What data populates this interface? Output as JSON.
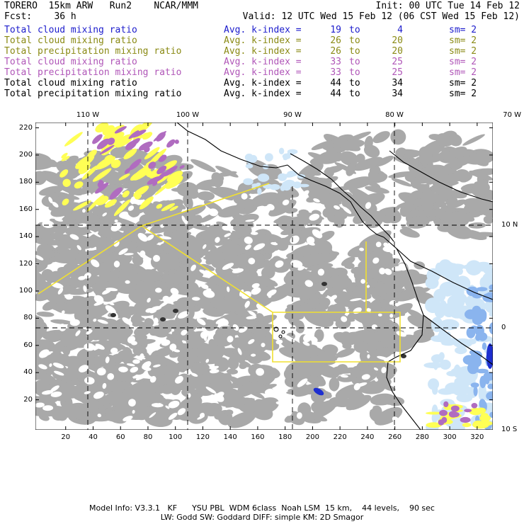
{
  "header": {
    "model": "TORERO",
    "resolution": "15km ARW",
    "run": "Run2",
    "org": "NCAR/MMM",
    "init": "Init: 00 UTC Tue 14 Feb 12",
    "fcst_label": "Fcst:",
    "fcst_value": "36 h",
    "valid": "Valid: 12 UTC Wed 15 Feb 12 (06 CST Wed 15 Feb 12)"
  },
  "legend": [
    {
      "field": "Total cloud mixing ratio",
      "kindex": "Avg. k-index =",
      "from": "19",
      "to_word": "to",
      "to": "4",
      "sm": "sm= 2",
      "color": "#1c1ccc"
    },
    {
      "field": "Total cloud mixing ratio",
      "kindex": "Avg. k-index =",
      "from": "26",
      "to_word": "to",
      "to": "20",
      "sm": "sm= 2",
      "color": "#8a8a14"
    },
    {
      "field": "Total precipitation mixing ratio",
      "kindex": "Avg. k-index =",
      "from": "26",
      "to_word": "to",
      "to": "20",
      "sm": "sm= 2",
      "color": "#8a8a14"
    },
    {
      "field": "Total cloud mixing ratio",
      "kindex": "Avg. k-index =",
      "from": "33",
      "to_word": "to",
      "to": "25",
      "sm": "sm= 2",
      "color": "#b056b8"
    },
    {
      "field": "Total precipitation mixing ratio",
      "kindex": "Avg. k-index =",
      "from": "33",
      "to_word": "to",
      "to": "25",
      "sm": "sm= 2",
      "color": "#b056b8"
    },
    {
      "field": "Total cloud mixing ratio",
      "kindex": "Avg. k-index =",
      "from": "44",
      "to_word": "to",
      "to": "34",
      "sm": "sm= 2",
      "color": "#000000"
    },
    {
      "field": "Total precipitation mixing ratio",
      "kindex": "Avg. k-index =",
      "from": "44",
      "to_word": "to",
      "to": "34",
      "sm": "sm= 2",
      "color": "#000000"
    }
  ],
  "axes": {
    "x_ticks": [
      "20",
      "40",
      "60",
      "80",
      "100",
      "120",
      "140",
      "160",
      "180",
      "200",
      "220",
      "240",
      "260",
      "280",
      "300",
      "320"
    ],
    "y_ticks": [
      "220",
      "200",
      "180",
      "160",
      "140",
      "120",
      "100",
      "80",
      "60",
      "40",
      "20"
    ],
    "lon_labels": [
      "110 W",
      "100 W",
      "90 W",
      "80 W",
      "70 W"
    ],
    "lat_labels": [
      "10 N",
      "0",
      "10 S"
    ]
  },
  "footer": {
    "line1": "Model Info: V3.3.1   KF      YSU PBL  WDM 6class  Noah LSM  15 km,    44 levels,    90 sec",
    "line2": "LW: Godd SW: Goddard DIFF: simple KM: 2D Smagor"
  },
  "colors": {
    "cloud_gray": "#a9a9a9",
    "light_blue": "#cfe6f8",
    "mid_blue": "#8ab4ee",
    "deep_blue": "#1e2fd0",
    "yellow": "#ffff55",
    "purple": "#b06cc0",
    "domain_line": "#f0e030"
  }
}
